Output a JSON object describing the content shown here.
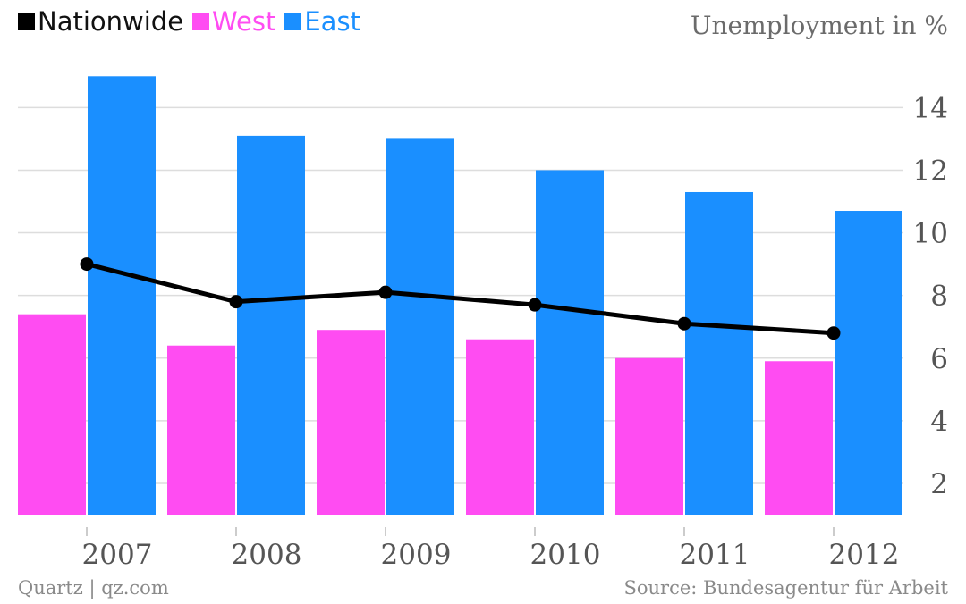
{
  "chart_data": {
    "type": "bar",
    "ylabel": "Unemployment in %",
    "categories": [
      "2007",
      "2008",
      "2009",
      "2010",
      "2011",
      "2012"
    ],
    "series": [
      {
        "name": "Nationwide",
        "type": "line",
        "color": "#000000",
        "values": [
          9.0,
          7.8,
          8.1,
          7.7,
          7.1,
          6.8
        ]
      },
      {
        "name": "West",
        "type": "bar",
        "color": "#ff4cf2",
        "values": [
          7.4,
          6.4,
          6.9,
          6.6,
          6.0,
          5.9
        ]
      },
      {
        "name": "East",
        "type": "bar",
        "color": "#1a8fff",
        "values": [
          15.0,
          13.1,
          13.0,
          12.0,
          11.3,
          10.7
        ]
      }
    ],
    "ylim": [
      1,
      15
    ],
    "yticks": [
      2,
      4,
      6,
      8,
      10,
      12,
      14
    ],
    "grid": true,
    "legend": "top-left",
    "y_axis_position": "right"
  },
  "footer": {
    "credit": "Quartz | qz.com",
    "source": "Source: Bundesagentur für Arbeit"
  }
}
